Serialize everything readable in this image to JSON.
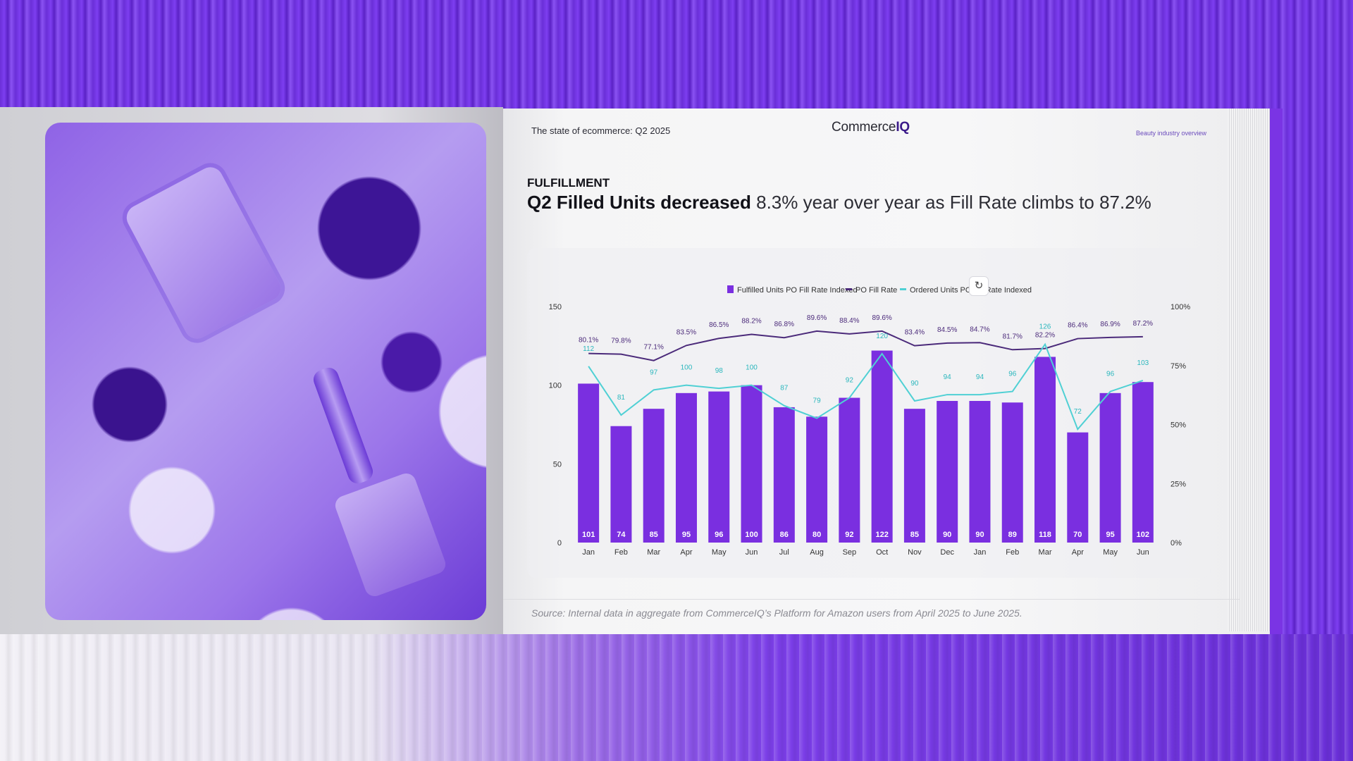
{
  "header": {
    "left": "The state of ecommerce: Q2 2025",
    "logo_plain": "Commerce",
    "logo_bold": "IQ",
    "right": "Beauty industry overview"
  },
  "section_label": "FULFILLMENT",
  "headline": {
    "part1": "Q2 Filled Units decreased",
    "part2": "8.3% year over year as Fill Rate climbs to 87.2%"
  },
  "refresh_icon": "refresh-icon",
  "source": "Source: Internal data in aggregate from CommerceIQ’s Platform for Amazon users from April 2025 to June 2025.",
  "colors": {
    "bar": "#7a2fe0",
    "fill_rate": "#4b2a7a",
    "ordered": "#4fd0d4"
  },
  "chart_data": {
    "type": "bar",
    "categories": [
      "Jan",
      "Feb",
      "Mar",
      "Apr",
      "May",
      "Jun",
      "Jul",
      "Aug",
      "Sep",
      "Oct",
      "Nov",
      "Dec",
      "Jan",
      "Feb",
      "Mar",
      "Apr",
      "May",
      "Jun"
    ],
    "series": [
      {
        "name": "Fulfilled Units PO Fill Rate Indexed",
        "type": "bar",
        "axis": "left",
        "values": [
          101,
          74,
          85,
          95,
          96,
          100,
          86,
          80,
          92,
          122,
          85,
          90,
          90,
          89,
          118,
          70,
          95,
          102
        ]
      },
      {
        "name": "PO Fill Rate",
        "type": "line",
        "axis": "right",
        "values": [
          80.1,
          79.8,
          77.1,
          83.5,
          86.5,
          88.2,
          86.8,
          89.6,
          88.4,
          89.6,
          83.4,
          84.5,
          84.7,
          81.7,
          82.2,
          86.4,
          86.9,
          87.2
        ],
        "labels": [
          "80.1%",
          "79.8%",
          "77.1%",
          "83.5%",
          "86.5%",
          "88.2%",
          "86.8%",
          "89.6%",
          "88.4%",
          "89.6%",
          "83.4%",
          "84.5%",
          "84.7%",
          "81.7%",
          "82.2%",
          "86.4%",
          "86.9%",
          "87.2%"
        ]
      },
      {
        "name": "Ordered Units PO Fill Rate Indexed",
        "type": "line",
        "axis": "left",
        "values": [
          112,
          81,
          97,
          100,
          98,
          100,
          87,
          79,
          92,
          120,
          90,
          94,
          94,
          96,
          126,
          72,
          96,
          103
        ]
      }
    ],
    "yticks_left": [
      "0",
      "50",
      "100",
      "150"
    ],
    "ylim_left": [
      0,
      150
    ],
    "yticks_right": [
      "0%",
      "25%",
      "50%",
      "75%",
      "100%"
    ],
    "ylim_right": [
      0,
      100
    ],
    "legend": "top-center",
    "grid": false
  }
}
